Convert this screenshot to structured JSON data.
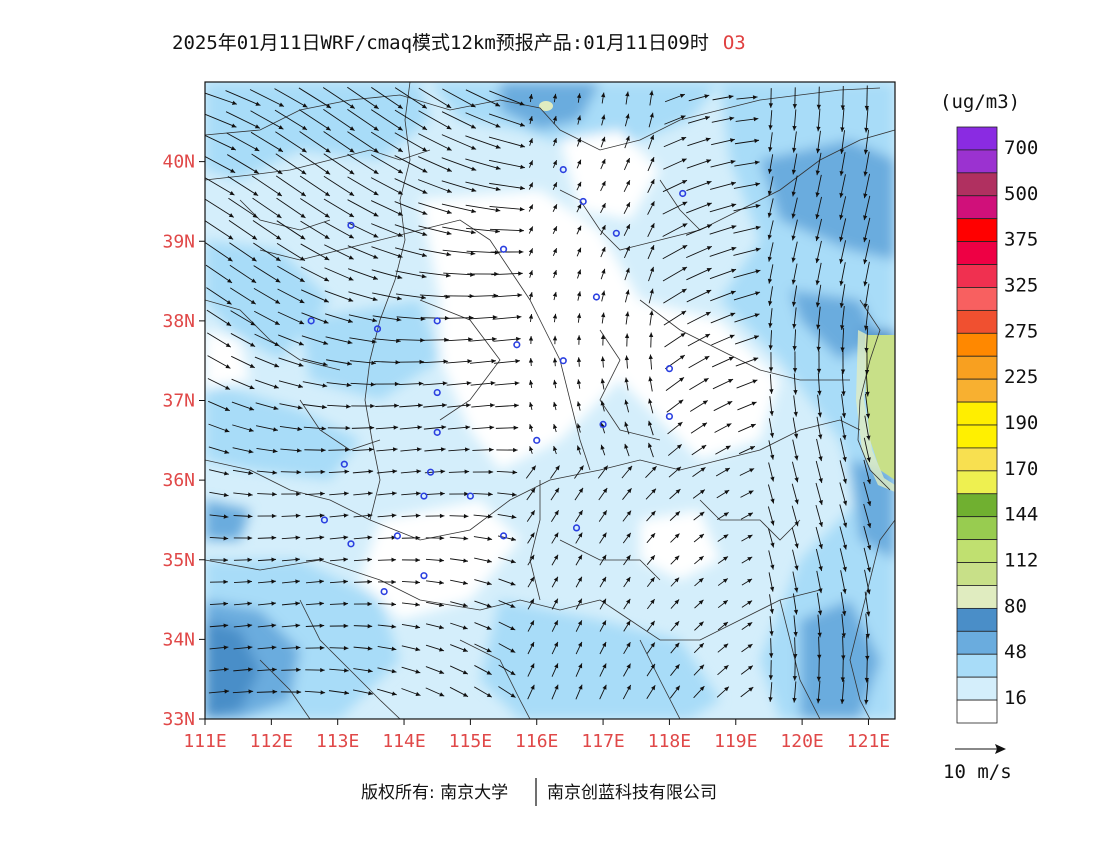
{
  "title": {
    "main": "2025年01月11日WRF/cmaq模式12km预报产品:01月11日09时",
    "variable": "O3"
  },
  "axes": {
    "lat_labels": [
      "40N",
      "39N",
      "38N",
      "37N",
      "36N",
      "35N",
      "34N",
      "33N"
    ],
    "lon_labels": [
      "111E",
      "112E",
      "113E",
      "114E",
      "115E",
      "116E",
      "117E",
      "118E",
      "119E",
      "120E",
      "121E"
    ],
    "lat_range": [
      33,
      41
    ],
    "lon_range": [
      111,
      121.4
    ]
  },
  "legend": {
    "unit": "(ug/m3)",
    "levels": [
      {
        "label": "700",
        "color": "#8a2be2"
      },
      {
        "label": "",
        "color": "#9b32d0"
      },
      {
        "label": "500",
        "color": "#b03060"
      },
      {
        "label": "",
        "color": "#d0107a"
      },
      {
        "label": "375",
        "color": "#ff0000"
      },
      {
        "label": "",
        "color": "#ee0044"
      },
      {
        "label": "325",
        "color": "#f03050"
      },
      {
        "label": "",
        "color": "#f86060"
      },
      {
        "label": "275",
        "color": "#f05030"
      },
      {
        "label": "",
        "color": "#ff8800"
      },
      {
        "label": "225",
        "color": "#f8a020"
      },
      {
        "label": "",
        "color": "#f8b030"
      },
      {
        "label": "190",
        "color": "#ffee00"
      },
      {
        "label": "",
        "color": "#fff000"
      },
      {
        "label": "170",
        "color": "#f8e050"
      },
      {
        "label": "",
        "color": "#eef050"
      },
      {
        "label": "144",
        "color": "#70b030"
      },
      {
        "label": "",
        "color": "#98cc50"
      },
      {
        "label": "112",
        "color": "#c0e070"
      },
      {
        "label": "",
        "color": "#c8e088"
      },
      {
        "label": "80",
        "color": "#e0ecc0"
      },
      {
        "label": "",
        "color": "#4a8ec8"
      },
      {
        "label": "48",
        "color": "#6aacde"
      },
      {
        "label": "",
        "color": "#a8dcf8"
      },
      {
        "label": "16",
        "color": "#d4eefb"
      },
      {
        "label": "",
        "color": "#ffffff"
      }
    ]
  },
  "wind_scale": {
    "label": "10 m/s"
  },
  "footer": {
    "copyright": "版权所有: 南京大学",
    "company": "南京创蓝科技有限公司"
  },
  "colors": {
    "white": "#ffffff",
    "very_light_blue": "#d4eefb",
    "light_blue": "#a8dcf8",
    "mid_blue": "#6aacde",
    "dark_blue": "#4a8ec8",
    "pale_green": "#e0ecc0",
    "light_green": "#c8e088",
    "axis_red": "#e04848"
  },
  "stations": [
    {
      "lon": 113.2,
      "lat": 39.2
    },
    {
      "lon": 116.4,
      "lat": 39.9
    },
    {
      "lon": 116.7,
      "lat": 39.5
    },
    {
      "lon": 117.2,
      "lat": 39.1
    },
    {
      "lon": 118.2,
      "lat": 39.6
    },
    {
      "lon": 115.5,
      "lat": 38.9
    },
    {
      "lon": 116.9,
      "lat": 38.3
    },
    {
      "lon": 112.6,
      "lat": 38.0
    },
    {
      "lon": 113.6,
      "lat": 37.9
    },
    {
      "lon": 114.5,
      "lat": 38.0
    },
    {
      "lon": 115.7,
      "lat": 37.7
    },
    {
      "lon": 116.4,
      "lat": 37.5
    },
    {
      "lon": 118.0,
      "lat": 37.4
    },
    {
      "lon": 114.5,
      "lat": 37.1
    },
    {
      "lon": 114.5,
      "lat": 36.6
    },
    {
      "lon": 118.0,
      "lat": 36.8
    },
    {
      "lon": 117.0,
      "lat": 36.7
    },
    {
      "lon": 116.0,
      "lat": 36.5
    },
    {
      "lon": 113.1,
      "lat": 36.2
    },
    {
      "lon": 114.4,
      "lat": 36.1
    },
    {
      "lon": 114.3,
      "lat": 35.8
    },
    {
      "lon": 115.0,
      "lat": 35.8
    },
    {
      "lon": 112.8,
      "lat": 35.5
    },
    {
      "lon": 113.2,
      "lat": 35.2
    },
    {
      "lon": 113.9,
      "lat": 35.3
    },
    {
      "lon": 115.5,
      "lat": 35.3
    },
    {
      "lon": 116.6,
      "lat": 35.4
    },
    {
      "lon": 114.3,
      "lat": 34.8
    },
    {
      "lon": 113.7,
      "lat": 34.6
    }
  ]
}
